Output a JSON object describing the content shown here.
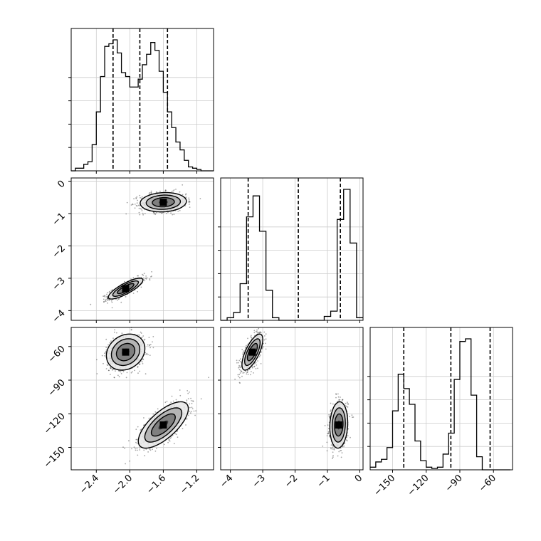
{
  "chart_data": {
    "type": "corner",
    "parameters": [
      {
        "index": 0,
        "range": [
          -2.7,
          -1.0
        ],
        "ticks": [
          -2.4,
          -2.0,
          -1.6,
          -1.2
        ],
        "tick_labels": [
          "−2.4",
          "−2.0",
          "−1.6",
          "−1.2"
        ],
        "quantiles": [
          -2.2,
          -1.88,
          -1.55
        ]
      },
      {
        "index": 1,
        "range": [
          -4.3,
          0.1
        ],
        "ticks": [
          -4,
          -3,
          -2,
          -1,
          0
        ],
        "tick_labels": [
          "−4",
          "−3",
          "−2",
          "−1",
          "0"
        ],
        "quantiles": [
          -3.45,
          -1.9,
          -0.6
        ]
      },
      {
        "index": 2,
        "range": [
          -170,
          -43
        ],
        "ticks": [
          -150,
          -120,
          -90,
          -60
        ],
        "tick_labels": [
          "−150",
          "−120",
          "−90",
          "−60"
        ],
        "quantiles": [
          -140,
          -98,
          -63
        ]
      }
    ],
    "histograms": [
      {
        "param": 0,
        "bin_edges": [
          -2.7,
          -2.65,
          -2.6,
          -2.55,
          -2.5,
          -2.45,
          -2.4,
          -2.35,
          -2.3,
          -2.25,
          -2.2,
          -2.15,
          -2.1,
          -2.05,
          -2.0,
          -1.95,
          -1.9,
          -1.85,
          -1.8,
          -1.75,
          -1.7,
          -1.65,
          -1.6,
          -1.55,
          -1.5,
          -1.45,
          -1.4,
          -1.35,
          -1.3,
          -1.25,
          -1.2,
          -1.15,
          -1.1,
          -1.05,
          -1.0
        ],
        "counts": [
          0,
          0.02,
          0.02,
          0.05,
          0.07,
          0.2,
          0.45,
          0.72,
          0.95,
          0.97,
          1.0,
          0.9,
          0.75,
          0.72,
          0.64,
          0.64,
          0.7,
          0.81,
          0.89,
          0.98,
          0.92,
          0.76,
          0.6,
          0.45,
          0.33,
          0.22,
          0.16,
          0.08,
          0.03,
          0.02,
          0.01,
          0,
          0,
          0
        ]
      },
      {
        "param": 1,
        "bin_edges": [
          -4.3,
          -4.1,
          -3.9,
          -3.7,
          -3.5,
          -3.3,
          -3.1,
          -2.9,
          -2.7,
          -2.5,
          -2.3,
          -2.1,
          -1.9,
          -1.7,
          -1.5,
          -1.3,
          -1.1,
          -0.9,
          -0.7,
          -0.5,
          -0.3,
          -0.1,
          0.1
        ],
        "counts": [
          0,
          0.02,
          0.06,
          0.28,
          0.79,
          0.95,
          0.68,
          0.23,
          0.02,
          0,
          0,
          0,
          0,
          0,
          0,
          0,
          0.03,
          0.07,
          0.77,
          1.0,
          0.59,
          0.02
        ]
      },
      {
        "param": 2,
        "bin_edges": [
          -170,
          -165,
          -160,
          -155,
          -150,
          -145,
          -140,
          -135,
          -130,
          -125,
          -120,
          -115,
          -110,
          -105,
          -100,
          -95,
          -90,
          -85,
          -80,
          -75,
          -70,
          -65,
          -60,
          -55,
          -50,
          -45
        ],
        "counts": [
          0.02,
          0.06,
          0.08,
          0.17,
          0.45,
          0.73,
          0.62,
          0.5,
          0.22,
          0.07,
          0.02,
          0.01,
          0.02,
          0.12,
          0.28,
          0.69,
          0.98,
          1.0,
          0.57,
          0.1,
          0,
          0,
          0,
          0,
          0
        ]
      }
    ],
    "joint": [
      {
        "x": 0,
        "y": 1,
        "modes": [
          {
            "cx": -2.05,
            "cy": -3.32,
            "sx": 0.09,
            "sy": 0.14,
            "rho": 0.82,
            "weight": 0.5
          },
          {
            "cx": -1.6,
            "cy": -0.65,
            "sx": 0.12,
            "sy": 0.13,
            "rho": 0.1,
            "weight": 0.5
          }
        ]
      },
      {
        "x": 0,
        "y": 2,
        "modes": [
          {
            "cx": -2.05,
            "cy": -65,
            "sx": 0.1,
            "sy": 7,
            "rho": 0.2,
            "weight": 0.5
          },
          {
            "cx": -1.6,
            "cy": -130,
            "sx": 0.13,
            "sy": 9,
            "rho": 0.7,
            "weight": 0.5
          }
        ]
      },
      {
        "x": 1,
        "y": 2,
        "modes": [
          {
            "cx": -3.32,
            "cy": -65,
            "sx": 0.14,
            "sy": 7,
            "rho": 0.7,
            "weight": 0.5
          },
          {
            "cx": -0.65,
            "cy": -130,
            "sx": 0.12,
            "sy": 9,
            "rho": 0.1,
            "weight": 0.5
          }
        ]
      }
    ],
    "contour_levels": [
      0.12,
      0.35,
      0.6,
      0.85
    ],
    "grid": true
  }
}
